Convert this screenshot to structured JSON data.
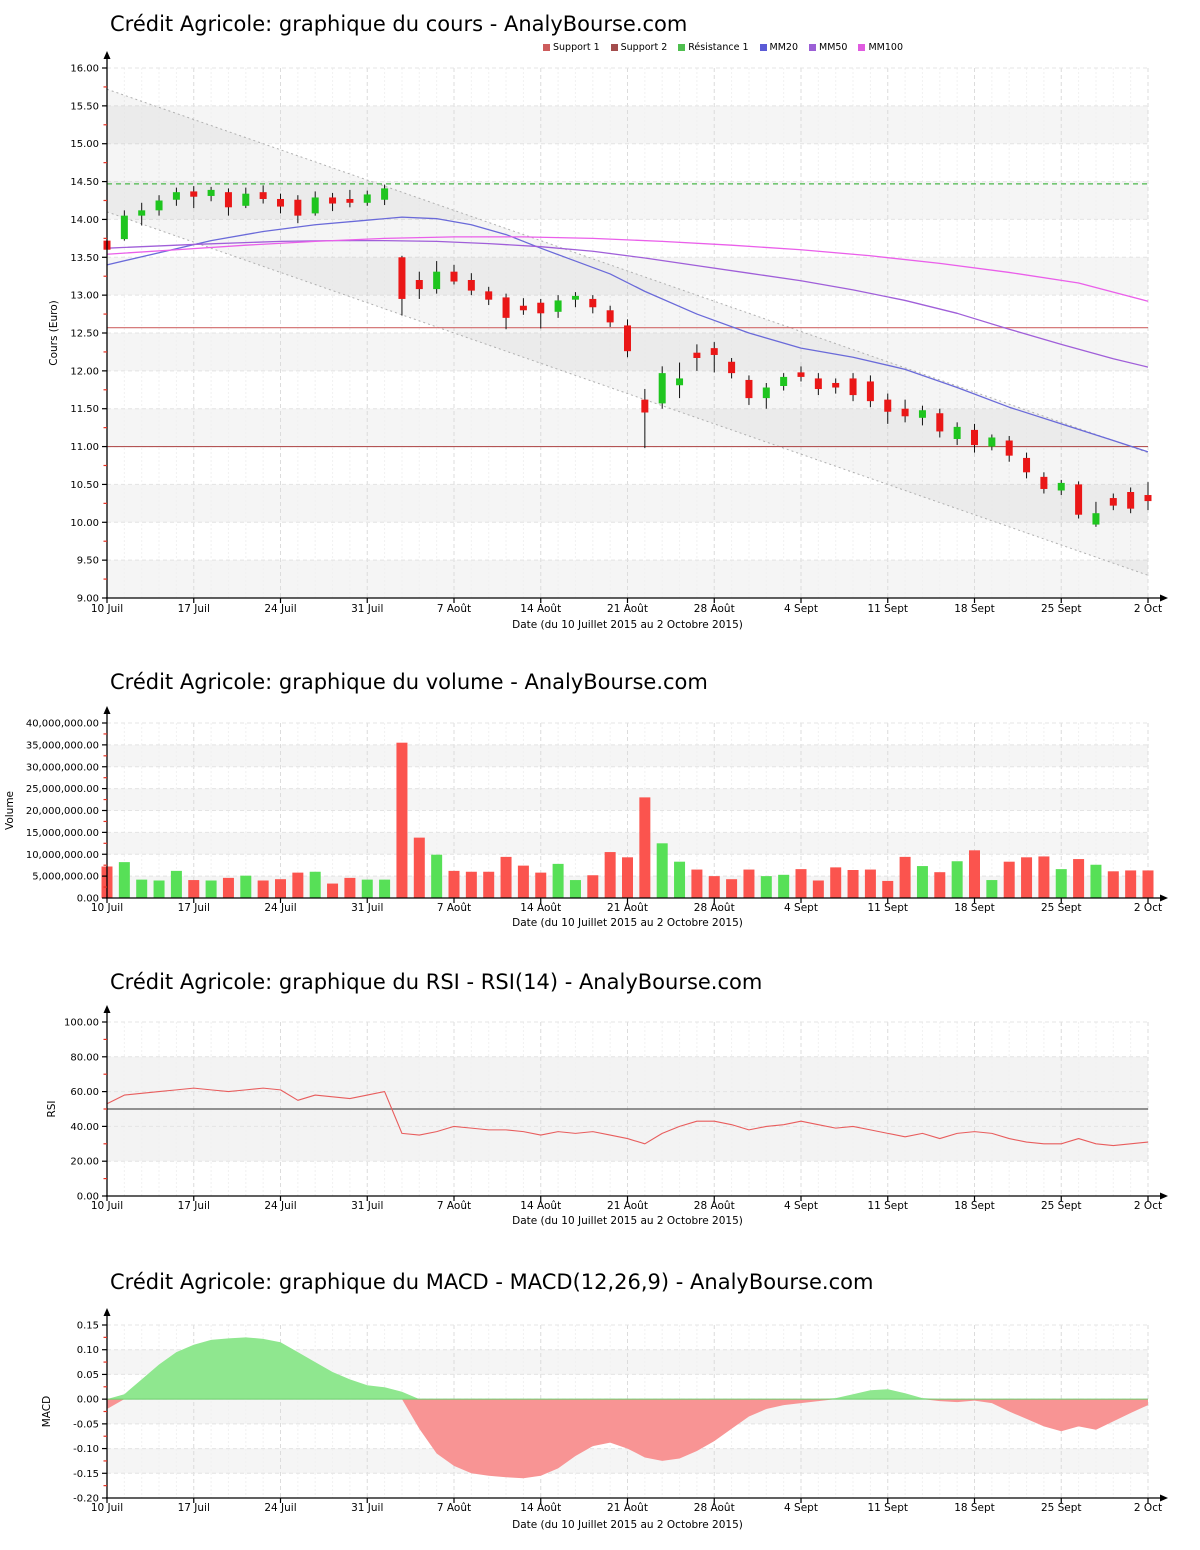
{
  "chart_data": {
    "shared_x": {
      "n": 61,
      "tick_indices": [
        0,
        5,
        10,
        15,
        20,
        25,
        30,
        35,
        40,
        45,
        50,
        55,
        60
      ],
      "tick_labels": [
        "10 Juil",
        "17 Juil",
        "24 Juil",
        "31 Juil",
        "7 Août",
        "14 Août",
        "21 Août",
        "28 Août",
        "4 Sept",
        "11 Sept",
        "18 Sept",
        "25 Sept",
        "2 Oct"
      ],
      "axis_label": "Date (du 10 Juillet 2015 au 2 Octobre 2015)"
    },
    "price": {
      "type": "candlestick",
      "title": "Crédit Agricole: graphique du cours - AnalyBourse.com",
      "ylabel": "Cours (Euro)",
      "ylim": [
        9,
        16
      ],
      "ytick_step": 0.5,
      "ytick_labels": [
        "16.00",
        "15.50",
        "15.00",
        "14.50",
        "14.00",
        "13.50",
        "13.00",
        "12.50",
        "12.00",
        "11.50",
        "11.00",
        "10.50",
        "10.00",
        "9.50",
        "9.00"
      ],
      "legend": [
        {
          "label": "Support 1",
          "color": "#cd5c5c"
        },
        {
          "label": "Support 2",
          "color": "#a34d4d"
        },
        {
          "label": "Résistance 1",
          "color": "#4fbf4f"
        },
        {
          "label": "MM20",
          "color": "#5b5bd6"
        },
        {
          "label": "MM50",
          "color": "#9b5fd6"
        },
        {
          "label": "MM100",
          "color": "#e05be0"
        }
      ],
      "levels": {
        "resistance1": 14.47,
        "support1": 12.57,
        "support2": 11.0
      },
      "channel": {
        "upper": [
          [
            0,
            15.72
          ],
          [
            60,
            10.92
          ]
        ],
        "lower": [
          [
            0,
            14.1
          ],
          [
            60,
            9.3
          ]
        ]
      },
      "mm20": [
        [
          0,
          13.4
        ],
        [
          3,
          13.56
        ],
        [
          6,
          13.72
        ],
        [
          9,
          13.84
        ],
        [
          12,
          13.93
        ],
        [
          15,
          13.99
        ],
        [
          17,
          14.03
        ],
        [
          19,
          14.01
        ],
        [
          21,
          13.93
        ],
        [
          23,
          13.8
        ],
        [
          25,
          13.62
        ],
        [
          27,
          13.45
        ],
        [
          29,
          13.28
        ],
        [
          31,
          13.05
        ],
        [
          34,
          12.75
        ],
        [
          37,
          12.5
        ],
        [
          40,
          12.3
        ],
        [
          43,
          12.18
        ],
        [
          46,
          12.02
        ],
        [
          49,
          11.78
        ],
        [
          52,
          11.52
        ],
        [
          55,
          11.3
        ],
        [
          58,
          11.08
        ],
        [
          60,
          10.93
        ]
      ],
      "mm50": [
        [
          0,
          13.62
        ],
        [
          5,
          13.67
        ],
        [
          10,
          13.71
        ],
        [
          13,
          13.72
        ],
        [
          16,
          13.72
        ],
        [
          19,
          13.71
        ],
        [
          22,
          13.68
        ],
        [
          25,
          13.64
        ],
        [
          28,
          13.58
        ],
        [
          31,
          13.49
        ],
        [
          34,
          13.39
        ],
        [
          37,
          13.29
        ],
        [
          40,
          13.19
        ],
        [
          43,
          13.07
        ],
        [
          46,
          12.93
        ],
        [
          49,
          12.76
        ],
        [
          52,
          12.55
        ],
        [
          55,
          12.35
        ],
        [
          58,
          12.16
        ],
        [
          60,
          12.05
        ]
      ],
      "mm100": [
        [
          0,
          13.54
        ],
        [
          4,
          13.6
        ],
        [
          8,
          13.66
        ],
        [
          12,
          13.71
        ],
        [
          16,
          13.75
        ],
        [
          20,
          13.77
        ],
        [
          24,
          13.77
        ],
        [
          28,
          13.75
        ],
        [
          32,
          13.71
        ],
        [
          36,
          13.66
        ],
        [
          40,
          13.6
        ],
        [
          44,
          13.52
        ],
        [
          48,
          13.42
        ],
        [
          52,
          13.3
        ],
        [
          56,
          13.16
        ],
        [
          60,
          12.92
        ]
      ],
      "candles_ohlc": [
        [
          13.72,
          13.76,
          13.53,
          13.6
        ],
        [
          13.74,
          14.12,
          13.72,
          14.05
        ],
        [
          14.05,
          14.22,
          13.92,
          14.12
        ],
        [
          14.12,
          14.32,
          14.05,
          14.25
        ],
        [
          14.26,
          14.42,
          14.18,
          14.36
        ],
        [
          14.37,
          14.44,
          14.15,
          14.3
        ],
        [
          14.31,
          14.43,
          14.24,
          14.39
        ],
        [
          14.36,
          14.41,
          14.05,
          14.16
        ],
        [
          14.18,
          14.42,
          14.15,
          14.34
        ],
        [
          14.36,
          14.45,
          14.21,
          14.27
        ],
        [
          14.27,
          14.34,
          14.08,
          14.17
        ],
        [
          14.26,
          14.32,
          13.95,
          14.05
        ],
        [
          14.08,
          14.37,
          14.05,
          14.29
        ],
        [
          14.29,
          14.35,
          14.11,
          14.21
        ],
        [
          14.27,
          14.39,
          14.16,
          14.22
        ],
        [
          14.22,
          14.38,
          14.18,
          14.33
        ],
        [
          14.26,
          14.46,
          14.19,
          14.41
        ],
        [
          13.5,
          13.52,
          12.73,
          12.95
        ],
        [
          13.2,
          13.31,
          12.95,
          13.08
        ],
        [
          13.08,
          13.45,
          13.02,
          13.31
        ],
        [
          13.31,
          13.4,
          13.14,
          13.18
        ],
        [
          13.2,
          13.29,
          13.0,
          13.06
        ],
        [
          13.05,
          13.11,
          12.87,
          12.94
        ],
        [
          12.97,
          13.02,
          12.55,
          12.7
        ],
        [
          12.86,
          12.96,
          12.74,
          12.8
        ],
        [
          12.9,
          12.95,
          12.56,
          12.76
        ],
        [
          12.78,
          13.0,
          12.7,
          12.93
        ],
        [
          12.94,
          13.04,
          12.84,
          12.99
        ],
        [
          12.95,
          13.0,
          12.76,
          12.84
        ],
        [
          12.8,
          12.86,
          12.58,
          12.64
        ],
        [
          12.6,
          12.68,
          12.18,
          12.26
        ],
        [
          11.62,
          11.76,
          10.98,
          11.45
        ],
        [
          11.57,
          12.06,
          11.5,
          11.97
        ],
        [
          11.81,
          12.11,
          11.64,
          11.9
        ],
        [
          12.24,
          12.35,
          12.0,
          12.17
        ],
        [
          12.3,
          12.38,
          11.98,
          12.21
        ],
        [
          12.12,
          12.17,
          11.9,
          11.97
        ],
        [
          11.88,
          11.94,
          11.55,
          11.64
        ],
        [
          11.64,
          11.84,
          11.5,
          11.78
        ],
        [
          11.8,
          11.97,
          11.74,
          11.92
        ],
        [
          11.98,
          12.06,
          11.86,
          11.92
        ],
        [
          11.9,
          11.97,
          11.68,
          11.76
        ],
        [
          11.84,
          11.9,
          11.7,
          11.78
        ],
        [
          11.9,
          11.97,
          11.6,
          11.68
        ],
        [
          11.86,
          11.94,
          11.52,
          11.6
        ],
        [
          11.62,
          11.7,
          11.3,
          11.46
        ],
        [
          11.5,
          11.62,
          11.32,
          11.4
        ],
        [
          11.38,
          11.54,
          11.28,
          11.48
        ],
        [
          11.44,
          11.5,
          11.12,
          11.2
        ],
        [
          11.1,
          11.32,
          11.02,
          11.26
        ],
        [
          11.22,
          11.3,
          10.92,
          11.02
        ],
        [
          11.0,
          11.16,
          10.95,
          11.12
        ],
        [
          11.08,
          11.14,
          10.8,
          10.88
        ],
        [
          10.85,
          10.92,
          10.58,
          10.66
        ],
        [
          10.6,
          10.66,
          10.38,
          10.44
        ],
        [
          10.42,
          10.56,
          10.36,
          10.52
        ],
        [
          10.5,
          10.54,
          10.05,
          10.1
        ],
        [
          9.97,
          10.27,
          9.94,
          10.12
        ],
        [
          10.32,
          10.38,
          10.16,
          10.22
        ],
        [
          10.4,
          10.46,
          10.12,
          10.18
        ],
        [
          10.36,
          10.53,
          10.16,
          10.28
        ]
      ],
      "colors": {
        "up": "#1fc51f",
        "down": "#ea1717",
        "wick": "#111111",
        "support1": "#d06a6a",
        "support2": "#b35454",
        "resistance": "#4bb84b",
        "mm20": "#6a6ad9",
        "mm50": "#a05fd9",
        "mm100": "#ea5fea",
        "channel": "#b0b0b0"
      }
    },
    "volume": {
      "type": "bar",
      "title": "Crédit Agricole: graphique du volume - AnalyBourse.com",
      "ylabel": "Volume",
      "ylim": [
        0,
        40000000
      ],
      "ytick_step": 5000000,
      "ytick_labels": [
        "40,000,000.00",
        "35,000,000.00",
        "30,000,000.00",
        "25,000,000.00",
        "20,000,000.00",
        "15,000,000.00",
        "10,000,000.00",
        "5,000,000.00",
        "0.00"
      ],
      "values": [
        7200000,
        8200000,
        4200000,
        4000000,
        6200000,
        4100000,
        4000000,
        4600000,
        5100000,
        4000000,
        4300000,
        5800000,
        6000000,
        3300000,
        4600000,
        4200000,
        4200000,
        35500000,
        13800000,
        9900000,
        6200000,
        6000000,
        6000000,
        9400000,
        7400000,
        5800000,
        7800000,
        4100000,
        5200000,
        10500000,
        9300000,
        23000000,
        12500000,
        8300000,
        6500000,
        5000000,
        4300000,
        6500000,
        5000000,
        5300000,
        6600000,
        4000000,
        7000000,
        6400000,
        6500000,
        3900000,
        9400000,
        7300000,
        5900000,
        8400000,
        10900000,
        4100000,
        8300000,
        9300000,
        9500000,
        6600000,
        8900000,
        7600000,
        6100000,
        6300000,
        6300000
      ],
      "colors": {
        "up": "#57e057",
        "down": "#fb544e"
      }
    },
    "rsi": {
      "type": "line",
      "title": "Crédit Agricole: graphique du RSI - RSI(14) - AnalyBourse.com",
      "ylabel": "RSI",
      "ylim": [
        0,
        100
      ],
      "ytick_step": 20,
      "ytick_labels": [
        "100.00",
        "80.00",
        "60.00",
        "40.00",
        "20.00",
        "0.00"
      ],
      "center_line": 50,
      "band": [
        20,
        80
      ],
      "values": [
        53,
        58,
        59,
        60,
        61,
        62,
        61,
        60,
        61,
        62,
        61,
        55,
        58,
        57,
        56,
        58,
        60,
        36,
        35,
        37,
        40,
        39,
        38,
        38,
        37,
        35,
        37,
        36,
        37,
        35,
        33,
        30,
        36,
        40,
        43,
        43,
        41,
        38,
        40,
        41,
        43,
        41,
        39,
        40,
        38,
        36,
        34,
        36,
        33,
        36,
        37,
        36,
        33,
        31,
        30,
        30,
        33,
        30,
        29,
        30,
        31
      ],
      "colors": {
        "line": "#e85d5d",
        "center": "#555555"
      }
    },
    "macd": {
      "type": "area",
      "title": "Crédit Agricole: graphique du MACD - MACD(12,26,9) - AnalyBourse.com",
      "ylabel": "MACD",
      "ylim": [
        -0.2,
        0.15
      ],
      "ytick_step": 0.05,
      "ytick_labels": [
        "0.15",
        "0.10",
        "0.05",
        "0.00",
        "-0.05",
        "-0.10",
        "-0.15",
        "-0.20"
      ],
      "values": [
        -0.02,
        0.01,
        0.04,
        0.07,
        0.095,
        0.11,
        0.12,
        0.123,
        0.125,
        0.122,
        0.115,
        0.095,
        0.075,
        0.055,
        0.04,
        0.028,
        0.024,
        0.015,
        -0.06,
        -0.11,
        -0.135,
        -0.15,
        -0.155,
        -0.158,
        -0.16,
        -0.155,
        -0.14,
        -0.115,
        -0.095,
        -0.088,
        -0.1,
        -0.118,
        -0.125,
        -0.12,
        -0.105,
        -0.085,
        -0.06,
        -0.035,
        -0.02,
        -0.012,
        -0.008,
        -0.004,
        0.002,
        0.01,
        0.018,
        0.02,
        0.012,
        0.002,
        -0.004,
        -0.006,
        -0.003,
        -0.008,
        -0.025,
        -0.04,
        -0.055,
        -0.065,
        -0.055,
        -0.062,
        -0.045,
        -0.028,
        -0.012
      ],
      "colors": {
        "pos": "#8fe78f",
        "neg": "#f89494",
        "zero_line": "#6fcf6f"
      }
    }
  }
}
